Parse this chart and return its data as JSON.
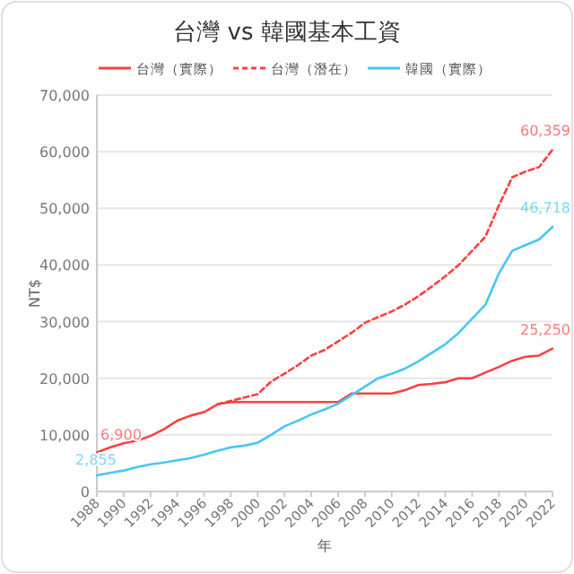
{
  "chart_data": {
    "type": "line",
    "title": "台灣 vs 韓國基本工資",
    "xlabel": "年",
    "ylabel": "NT$",
    "x": [
      1988,
      1989,
      1990,
      1991,
      1992,
      1993,
      1994,
      1995,
      1996,
      1997,
      1998,
      1999,
      2000,
      2001,
      2002,
      2003,
      2004,
      2005,
      2006,
      2007,
      2008,
      2009,
      2010,
      2011,
      2012,
      2013,
      2014,
      2015,
      2016,
      2017,
      2018,
      2019,
      2020,
      2021,
      2022
    ],
    "series": [
      {
        "name": "台灣（實際）",
        "color": "#ff4040",
        "line_style": "solid",
        "values": [
          6900,
          7800,
          8500,
          9000,
          9800,
          11000,
          12500,
          13400,
          14000,
          15400,
          15800,
          15800,
          15800,
          15800,
          15800,
          15800,
          15800,
          15800,
          15800,
          17300,
          17300,
          17300,
          17300,
          17900,
          18800,
          19000,
          19300,
          20000,
          20000,
          21000,
          22000,
          23100,
          23800,
          24000,
          25250
        ],
        "value_labels": [
          "6,900",
          null,
          null,
          null,
          null,
          null,
          null,
          null,
          null,
          null,
          null,
          null,
          null,
          null,
          null,
          null,
          null,
          null,
          null,
          null,
          null,
          null,
          null,
          null,
          null,
          null,
          null,
          null,
          null,
          null,
          null,
          null,
          null,
          null,
          "25,250"
        ]
      },
      {
        "name": "台灣（潛在）",
        "color": "#ff4040",
        "line_style": "dashed",
        "values": [
          null,
          null,
          null,
          null,
          null,
          null,
          null,
          null,
          null,
          15400,
          16000,
          16600,
          17200,
          19400,
          20800,
          22300,
          24000,
          25000,
          26500,
          28000,
          29800,
          30800,
          31800,
          33000,
          34500,
          36200,
          38000,
          40000,
          42500,
          45000,
          50500,
          55500,
          56500,
          57300,
          60359
        ],
        "value_labels": [
          null,
          null,
          null,
          null,
          null,
          null,
          null,
          null,
          null,
          null,
          null,
          null,
          null,
          null,
          null,
          null,
          null,
          null,
          null,
          null,
          null,
          null,
          null,
          null,
          null,
          null,
          null,
          null,
          null,
          null,
          null,
          null,
          null,
          null,
          "60,359"
        ]
      },
      {
        "name": "韓國（實際）",
        "color": "#45c8f5",
        "line_style": "solid",
        "values": [
          2855,
          3300,
          3700,
          4300,
          4800,
          5100,
          5500,
          5900,
          6500,
          7200,
          7800,
          8100,
          8600,
          10000,
          11500,
          12500,
          13600,
          14500,
          15500,
          17000,
          18500,
          20000,
          20800,
          21700,
          23000,
          24500,
          26000,
          28000,
          30500,
          33000,
          38500,
          42500,
          43500,
          44500,
          46718
        ],
        "value_labels": [
          "2,855",
          null,
          null,
          null,
          null,
          null,
          null,
          null,
          null,
          null,
          null,
          null,
          null,
          null,
          null,
          null,
          null,
          null,
          null,
          null,
          null,
          null,
          null,
          null,
          null,
          null,
          null,
          null,
          null,
          null,
          null,
          null,
          null,
          null,
          "46,718"
        ]
      }
    ],
    "xlim": [
      1988,
      2022
    ],
    "xticks": [
      1988,
      1990,
      1992,
      1994,
      1996,
      1998,
      2000,
      2002,
      2004,
      2006,
      2008,
      2010,
      2012,
      2014,
      2016,
      2018,
      2020,
      2022
    ],
    "ylim": [
      0,
      70000
    ],
    "yticks": [
      {
        "value": 0,
        "label": "0"
      },
      {
        "value": 10000,
        "label": "10,000"
      },
      {
        "value": 20000,
        "label": "20,000"
      },
      {
        "value": 30000,
        "label": "30,000"
      },
      {
        "value": 40000,
        "label": "40,000"
      },
      {
        "value": 50000,
        "label": "50,000"
      },
      {
        "value": 60000,
        "label": "60,000"
      },
      {
        "value": 70000,
        "label": "70,000"
      }
    ],
    "grid": "y",
    "legend": "top",
    "marker": "none"
  }
}
